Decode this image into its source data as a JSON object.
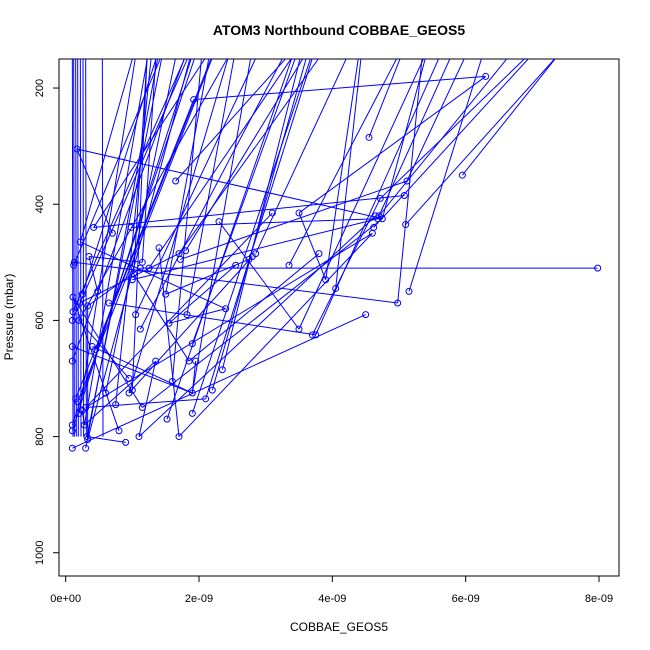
{
  "chart_data": {
    "type": "scatter",
    "title": "ATOM3 Northbound COBBAE_GEOS5",
    "xlabel": "COBBAE_GEOS5",
    "ylabel": "Pressure (mbar)",
    "xlim": [
      -1e-10,
      8.3e-09
    ],
    "ylim": [
      1040,
      150
    ],
    "y_reversed": true,
    "x_ticks": [
      0,
      2e-09,
      4e-09,
      6e-09,
      8e-09
    ],
    "x_tick_labels": [
      "0e+00",
      "2e-09",
      "4e-09",
      "6e-09",
      "8e-09"
    ],
    "y_ticks": [
      200,
      400,
      600,
      800,
      1000
    ],
    "y_tick_labels": [
      "200",
      "400",
      "600",
      "800",
      "1000"
    ],
    "grid": false,
    "legend": "none",
    "series_color": "#0000ff",
    "marker": "open-circle",
    "connect_points": true,
    "x": [
      1e-10,
      1e-10,
      1e-10,
      1e-10,
      1e-10,
      1e-10,
      1.1e-10,
      1.1e-10,
      1.2e-10,
      1.3e-10,
      1.5e-10,
      1.7e-10,
      1.8e-10,
      2e-10,
      2e-10,
      2.1e-10,
      2.2e-10,
      2.5e-10,
      2.5e-10,
      2.8e-10,
      3e-10,
      3e-10,
      3.2e-10,
      3.3e-10,
      3.3e-10,
      3.5e-10,
      4e-10,
      4.2e-10,
      4.5e-10,
      4.8e-10,
      6e-10,
      6.5e-10,
      7e-10,
      7.5e-10,
      8e-10,
      9e-10,
      9.5e-10,
      9.5e-10,
      9.8e-10,
      1e-09,
      1e-09,
      1.02e-09,
      1.05e-09,
      1.1e-09,
      1.12e-09,
      1.12e-09,
      1.15e-09,
      1.15e-09,
      1.25e-09,
      1.35e-09,
      1.4e-09,
      1.5e-09,
      1.52e-09,
      1.55e-09,
      1.6e-09,
      1.65e-09,
      1.7e-09,
      1.7e-09,
      1.72e-09,
      1.8e-09,
      1.82e-09,
      1.85e-09,
      1.9e-09,
      1.9e-09,
      1.9e-09,
      1.92e-09,
      1.95e-09,
      2.1e-09,
      2.2e-09,
      2.3e-09,
      2.35e-09,
      2.4e-09,
      2.55e-09,
      2.75e-09,
      2.8e-09,
      2.85e-09,
      3.1e-09,
      3.35e-09,
      3.5e-09,
      3.5e-09,
      3.7e-09,
      3.75e-09,
      3.8e-09,
      3.9e-09,
      4.05e-09,
      4.5e-09,
      4.55e-09,
      4.6e-09,
      4.62e-09,
      4.65e-09,
      4.68e-09,
      4.7e-09,
      4.72e-09,
      4.75e-09,
      4.98e-09,
      5.08e-09,
      5.1e-09,
      5.12e-09,
      5.15e-09,
      5.95e-09,
      6.3e-09,
      7.98e-09
    ],
    "y": [
      820,
      790,
      780,
      670,
      645,
      600,
      585,
      560,
      505,
      500,
      735,
      305,
      740,
      760,
      600,
      570,
      465,
      555,
      755,
      780,
      750,
      820,
      800,
      805,
      575,
      490,
      645,
      440,
      650,
      550,
      725,
      570,
      450,
      745,
      790,
      810,
      725,
      700,
      440,
      530,
      720,
      520,
      590,
      800,
      510,
      615,
      500,
      750,
      510,
      670,
      475,
      555,
      770,
      605,
      705,
      360,
      485,
      800,
      495,
      480,
      590,
      670,
      640,
      760,
      725,
      220,
      670,
      735,
      720,
      430,
      685,
      580,
      505,
      495,
      490,
      485,
      415,
      505,
      615,
      415,
      625,
      625,
      485,
      530,
      545,
      590,
      285,
      450,
      440,
      420,
      425,
      420,
      390,
      425,
      570,
      385,
      435,
      360,
      550,
      350,
      180,
      510
    ]
  }
}
